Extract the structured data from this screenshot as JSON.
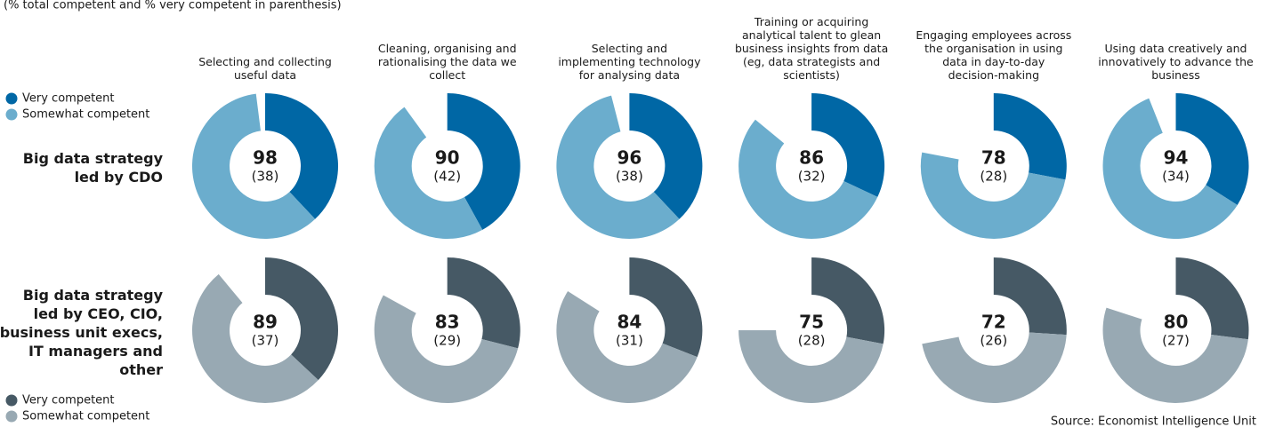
{
  "chart_data": {
    "type": "donut",
    "subtitle": "(% total competent and % very competent in parenthesis)",
    "categories": [
      [
        "Selecting and collecting",
        "useful data"
      ],
      [
        "Cleaning, organising and",
        "rationalising the data we",
        "collect"
      ],
      [
        "Selecting and",
        "implementing technology",
        "for analysing data"
      ],
      [
        "Training or acquiring",
        "analytical talent to glean",
        "business insights from data",
        "(eg, data strategists and",
        "scientists)"
      ],
      [
        "Engaging employees across",
        "the organisation in using",
        "data in day-to-day",
        "decision-making"
      ],
      [
        "Using data creatively and",
        "innovatively to advance the",
        "business"
      ]
    ],
    "groups": [
      {
        "label": [
          "Big data strategy",
          "led by CDO"
        ],
        "values": [
          98,
          90,
          96,
          86,
          78,
          94
        ],
        "series": [
          {
            "name": "Very competent",
            "color": "#0067a5",
            "values": [
              38,
              42,
              38,
              32,
              28,
              34
            ],
            "value_labels": [
              "(38)",
              "(42)",
              "(38)",
              "(32)",
              "(28)",
              "(34)"
            ]
          },
          {
            "name": "Somewhat competent",
            "color": "#6badcd"
          }
        ]
      },
      {
        "label": [
          "Big data strategy",
          "led by CEO, CIO,",
          "business unit execs,",
          "IT managers and",
          "other"
        ],
        "values": [
          89,
          83,
          84,
          75,
          72,
          80
        ],
        "series": [
          {
            "name": "Very competent",
            "color": "#465965",
            "values": [
              37,
              29,
              31,
              28,
              26,
              27
            ],
            "value_labels": [
              "(37)",
              "(29)",
              "(31)",
              "(28)",
              "(26)",
              "(27)"
            ]
          },
          {
            "name": "Somewhat competent",
            "color": "#98a9b3"
          }
        ]
      }
    ],
    "ylim": [
      0,
      100
    ],
    "source": "Source: Economist Intelligence Unit"
  }
}
